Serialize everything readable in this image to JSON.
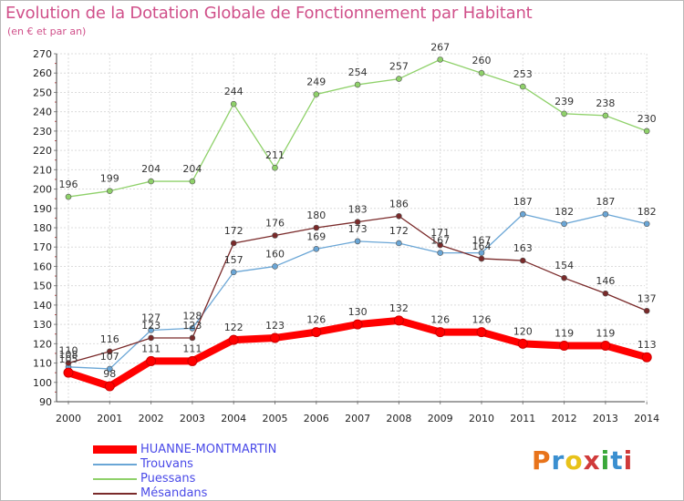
{
  "header": {
    "title": "Evolution de la Dotation Globale de Fonctionnement par Habitant",
    "subtitle": "(en € et par an)"
  },
  "logo": {
    "text": "Proxiti",
    "colors": [
      "#e8731a",
      "#3a8fd0",
      "#e8c21a",
      "#d03a3a",
      "#3aa83a",
      "#3a8fd0",
      "#d03a3a"
    ]
  },
  "chart_data": {
    "type": "line",
    "title": "Evolution de la Dotation Globale de Fonctionnement par Habitant",
    "subtitle": "(en € et par an)",
    "xlabel": "",
    "ylabel": "",
    "x": [
      "2000",
      "2001",
      "2002",
      "2003",
      "2004",
      "2005",
      "2006",
      "2007",
      "2008",
      "2009",
      "2010",
      "2011",
      "2012",
      "2013",
      "2014"
    ],
    "ylim": [
      90,
      270
    ],
    "yticks": [
      90,
      100,
      110,
      120,
      130,
      140,
      150,
      160,
      170,
      180,
      190,
      200,
      210,
      220,
      230,
      240,
      250,
      260,
      270
    ],
    "grid": true,
    "legend_position": "bottom-left",
    "series": [
      {
        "name": "HUANNE-MONTMARTIN",
        "color": "#ff0000",
        "values": [
          105,
          98,
          111,
          111,
          122,
          123,
          126,
          130,
          132,
          126,
          126,
          120,
          119,
          119,
          113
        ]
      },
      {
        "name": "Trouvans",
        "color": "#6aa6d6",
        "values": [
          108,
          107,
          127,
          128,
          157,
          160,
          169,
          173,
          172,
          167,
          167,
          187,
          182,
          187,
          182
        ]
      },
      {
        "name": "Puessans",
        "color": "#8fd16a",
        "values": [
          196,
          199,
          204,
          204,
          244,
          211,
          249,
          254,
          257,
          267,
          260,
          253,
          239,
          238,
          230
        ]
      },
      {
        "name": "Mésandans",
        "color": "#7a2a2a",
        "values": [
          110,
          116,
          123,
          123,
          172,
          176,
          180,
          183,
          186,
          171,
          164,
          163,
          154,
          146,
          137
        ]
      }
    ]
  }
}
